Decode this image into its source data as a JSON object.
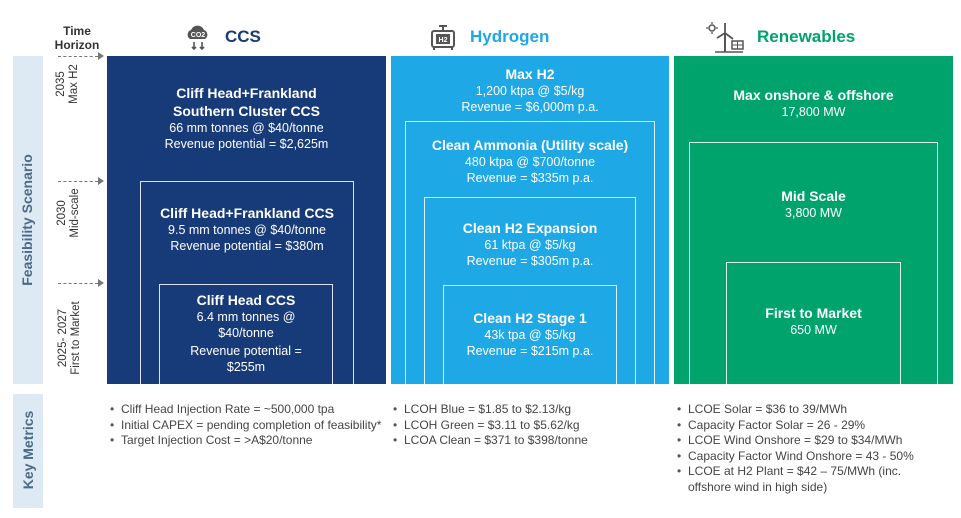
{
  "time_horizon": "Time Horizon",
  "side": {
    "feasibility": "Feasibility Scenario",
    "key_metrics": "Key Metrics",
    "row_2035": "2035",
    "row_2035_sub": "Max H2",
    "row_2030": "2030",
    "row_2030_sub": "Mid-scale",
    "row_2025": "2025- 2027",
    "row_2025_sub": "First to Market"
  },
  "columns": {
    "ccs": {
      "title": "CCS",
      "color": "#173a78",
      "icon": "cloud-co2-icon"
    },
    "hydrogen": {
      "title": "Hydrogen",
      "color": "#1ea8e6",
      "icon": "h2-tank-icon"
    },
    "renewables": {
      "title": "Renewables",
      "color": "#00a36c",
      "icon": "wind-solar-icon"
    }
  },
  "ccs": {
    "max": {
      "title1": "Cliff Head+Frankland",
      "title2": "Southern Cluster CCS",
      "line1": "66 mm tonnes @ $40/tonne",
      "line2": "Revenue potential = $2,625m"
    },
    "mid": {
      "title": "Cliff Head+Frankland CCS",
      "line1": "9.5 mm tonnes @ $40/tonne",
      "line2": "Revenue potential = $380m"
    },
    "first": {
      "title": "Cliff Head CCS",
      "line1": "6.4 mm tonnes @",
      "line2": "$40/tonne",
      "line3": "Revenue potential =",
      "line4": "$255m"
    }
  },
  "hydrogen": {
    "max": {
      "title": "Max H2",
      "line1": "1,200 ktpa @ $5/kg",
      "line2": "Revenue = $6,000m p.a."
    },
    "ammonia": {
      "title": "Clean Ammonia (Utility scale)",
      "line1": "480 ktpa @ $700/tonne",
      "line2": "Revenue = $335m p.a."
    },
    "expansion": {
      "title": "Clean H2 Expansion",
      "line1": "61 ktpa @ $5/kg",
      "line2": "Revenue = $305m p.a."
    },
    "stage1": {
      "title": "Clean H2 Stage 1",
      "line1": "43k tpa @ $5/kg",
      "line2": "Revenue = $215m p.a."
    }
  },
  "renewables": {
    "max": {
      "title": "Max onshore & offshore",
      "line1": "17,800 MW"
    },
    "mid": {
      "title": "Mid Scale",
      "line1": "3,800 MW"
    },
    "first": {
      "title": "First to Market",
      "line1": "650 MW"
    }
  },
  "metrics": {
    "ccs": [
      "Cliff Head Injection Rate = ~500,000 tpa",
      "Initial CAPEX = pending completion of feasibility*",
      "Target Injection Cost = >A$20/tonne"
    ],
    "hydrogen": [
      "LCOH Blue = $1.85 to $2.13/kg",
      "LCOH Green = $3.11 to $5.62/kg",
      "LCOA Clean = $371 to $398/tonne"
    ],
    "renewables": [
      "LCOE Solar = $36 to 39/MWh",
      "Capacity Factor Solar = 26 - 29%",
      "LCOE Wind Onshore = $29 to $34/MWh",
      "Capacity Factor Wind Onshore = 43 - 50%",
      "LCOE at H2 Plant = $42 – 75/MWh (inc. offshore wind in high side)"
    ]
  }
}
